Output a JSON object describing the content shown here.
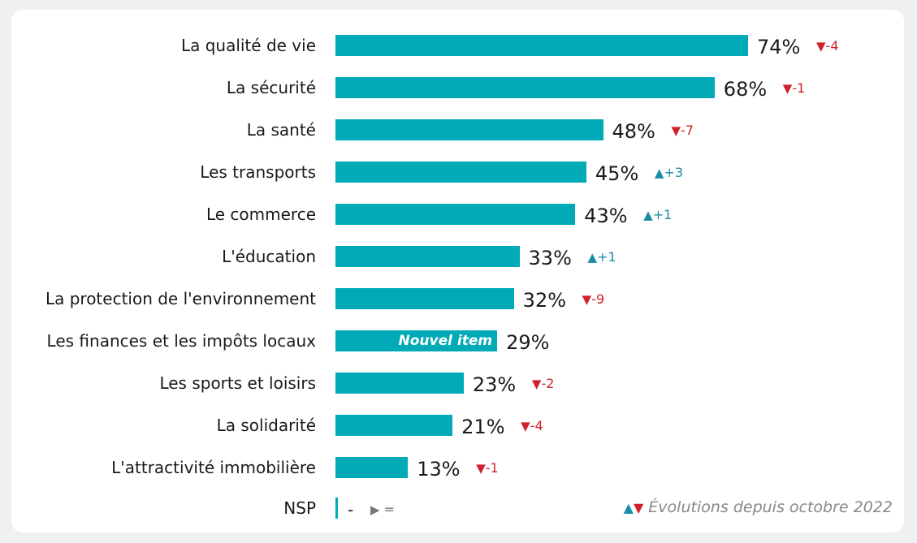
{
  "chart_data": {
    "type": "bar",
    "orientation": "horizontal",
    "categories": [
      "La qualité de vie",
      "La sécurité",
      "La santé",
      "Les transports",
      "Le commerce",
      "L'éducation",
      "La protection de l'environnement",
      "Les finances et les impôts locaux",
      "Les sports et loisirs",
      "La solidarité",
      "L'attractivité immobilière"
    ],
    "values": [
      74,
      68,
      48,
      45,
      43,
      33,
      32,
      29,
      23,
      21,
      13
    ],
    "value_labels": [
      "74%",
      "68%",
      "48%",
      "45%",
      "43%",
      "33%",
      "32%",
      "29%",
      "23%",
      "21%",
      "13%"
    ],
    "evolutions": [
      {
        "dir": "down",
        "text": "-4"
      },
      {
        "dir": "down",
        "text": "-1"
      },
      {
        "dir": "down",
        "text": "-7"
      },
      {
        "dir": "up",
        "text": "+3"
      },
      {
        "dir": "up",
        "text": "+1"
      },
      {
        "dir": "up",
        "text": "+1"
      },
      {
        "dir": "down",
        "text": "-9"
      },
      null,
      {
        "dir": "down",
        "text": "-2"
      },
      {
        "dir": "down",
        "text": "-4"
      },
      {
        "dir": "down",
        "text": "-1"
      }
    ],
    "bar_notes": [
      null,
      null,
      null,
      null,
      null,
      null,
      null,
      "Nouvel item",
      null,
      null,
      null
    ],
    "nsp": {
      "label": "NSP",
      "value_label": "-",
      "evolution_symbol": "▶",
      "evolution_text": "="
    },
    "legend": {
      "up_symbol": "▲",
      "down_symbol": "▼",
      "text": "Évolutions depuis octobre 2022"
    },
    "colors": {
      "bar": "#00aab6",
      "up": "#1a8ca6",
      "down": "#d0202a",
      "neutral": "#777777"
    }
  }
}
